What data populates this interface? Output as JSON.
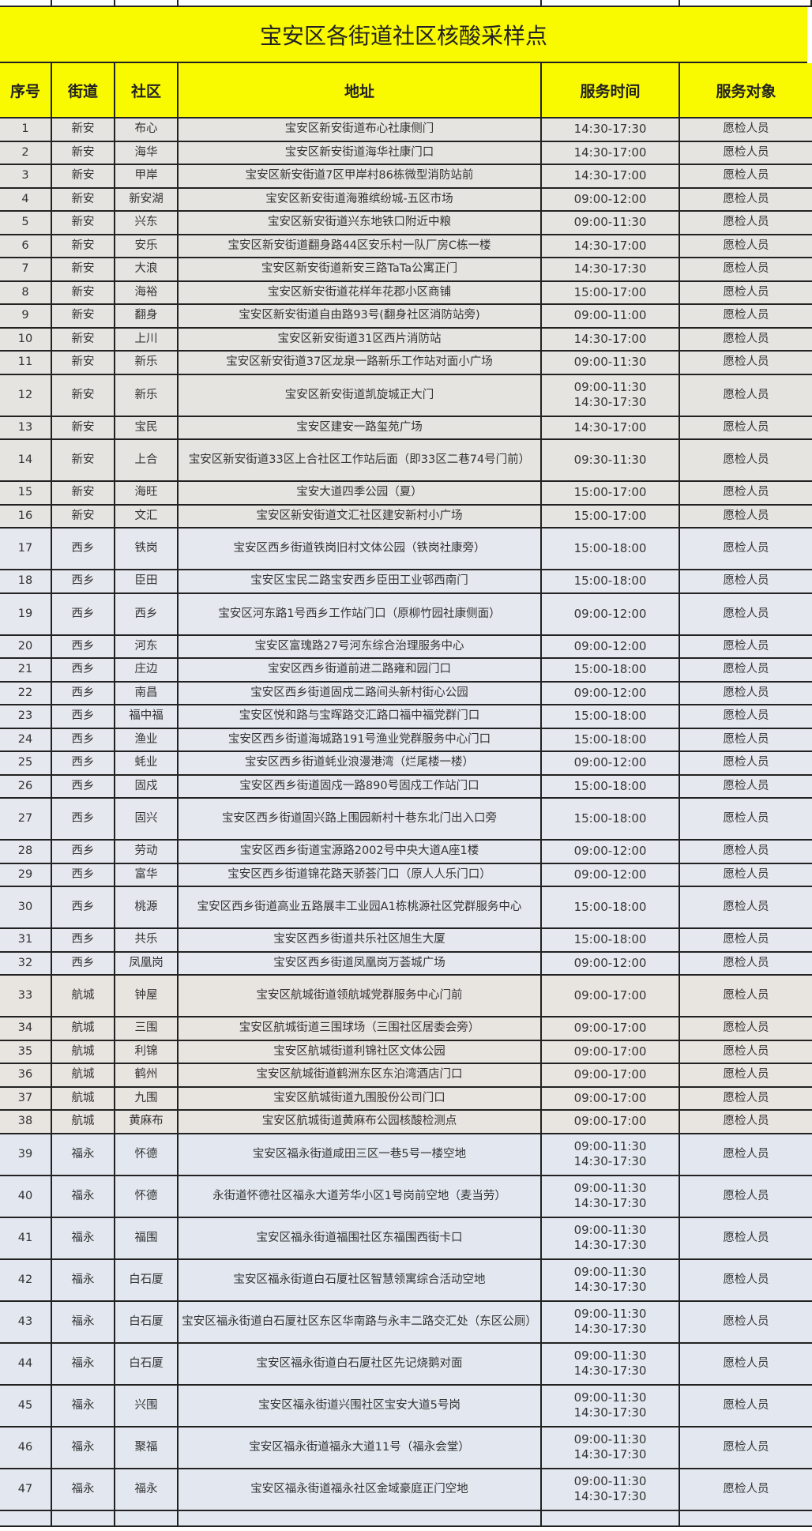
{
  "title": "宝安区各街道社区核酸采样点",
  "headers": [
    "序号",
    "街道",
    "社区",
    "地址",
    "服务时间",
    "服务对象"
  ],
  "colors": {
    "header_bg": "#f9f900",
    "border": "#222222",
    "xinan_bg": "#e6e4e0",
    "xixiang_bg": "#e5e8ef",
    "hangcheng_bg": "#e8e5e1",
    "fuyong_bg": "#e3e8f0"
  },
  "rows": [
    {
      "no": "1",
      "street": "新安",
      "community": "布心",
      "address": "宝安区新安街道布心社康侧门",
      "time": [
        "14:30-17:30"
      ],
      "target": "愿检人员"
    },
    {
      "no": "2",
      "street": "新安",
      "community": "海华",
      "address": "宝安区新安街道海华社康门口",
      "time": [
        "14:30-17:00"
      ],
      "target": "愿检人员"
    },
    {
      "no": "3",
      "street": "新安",
      "community": "甲岸",
      "address": "宝安区新安街道7区甲岸村86栋微型消防站前",
      "time": [
        "14:30-17:00"
      ],
      "target": "愿检人员"
    },
    {
      "no": "4",
      "street": "新安",
      "community": "新安湖",
      "address": "宝安区新安街道海雅缤纷城-五区市场",
      "time": [
        "09:00-12:00"
      ],
      "target": "愿检人员"
    },
    {
      "no": "5",
      "street": "新安",
      "community": "兴东",
      "address": "宝安区新安街道兴东地铁口附近中粮",
      "time": [
        "09:00-11:30"
      ],
      "target": "愿检人员"
    },
    {
      "no": "6",
      "street": "新安",
      "community": "安乐",
      "address": "宝安区新安街道翻身路44区安乐村一队厂房C栋一楼",
      "time": [
        "14:30-17:00"
      ],
      "target": "愿检人员"
    },
    {
      "no": "7",
      "street": "新安",
      "community": "大浪",
      "address": "宝安区新安街道新安三路TaTa公寓正门",
      "time": [
        "14:30-17:30"
      ],
      "target": "愿检人员"
    },
    {
      "no": "8",
      "street": "新安",
      "community": "海裕",
      "address": "宝安区新安街道花样年花郡小区商铺",
      "time": [
        "15:00-17:00"
      ],
      "target": "愿检人员"
    },
    {
      "no": "9",
      "street": "新安",
      "community": "翻身",
      "address": "宝安区新安街道自由路93号(翻身社区消防站旁)",
      "time": [
        "09:00-11:00"
      ],
      "target": "愿检人员"
    },
    {
      "no": "10",
      "street": "新安",
      "community": "上川",
      "address": "宝安区新安街道31区西片消防站",
      "time": [
        "14:30-17:00"
      ],
      "target": "愿检人员"
    },
    {
      "no": "11",
      "street": "新安",
      "community": "新乐",
      "address": "宝安区新安街道37区龙泉一路新乐工作站对面小广场",
      "time": [
        "09:00-11:30"
      ],
      "target": "愿检人员"
    },
    {
      "no": "12",
      "street": "新安",
      "community": "新乐",
      "address": "宝安区新安街道凯旋城正大门",
      "time": [
        "09:00-11:30",
        "14:30-17:30"
      ],
      "target": "愿检人员"
    },
    {
      "no": "13",
      "street": "新安",
      "community": "宝民",
      "address": "宝安区建安一路玺苑广场",
      "time": [
        "14:30-17:00"
      ],
      "target": "愿检人员"
    },
    {
      "no": "14",
      "street": "新安",
      "community": "上合",
      "address": "宝安区新安街道33区上合社区工作站后面（即33区二巷74号门前）",
      "time": [
        "09:30-11:30"
      ],
      "target": "愿检人员"
    },
    {
      "no": "15",
      "street": "新安",
      "community": "海旺",
      "address": "宝安大道四季公园（夏）",
      "time": [
        "15:00-17:00"
      ],
      "target": "愿检人员"
    },
    {
      "no": "16",
      "street": "新安",
      "community": "文汇",
      "address": "宝安区新安街道文汇社区建安新村小广场",
      "time": [
        "15:00-17:00"
      ],
      "target": "愿检人员"
    },
    {
      "no": "17",
      "street": "西乡",
      "community": "铁岗",
      "address": "宝安区西乡街道铁岗旧村文体公园（铁岗社康旁）",
      "time": [
        "15:00-18:00"
      ],
      "target": "愿检人员"
    },
    {
      "no": "18",
      "street": "西乡",
      "community": "臣田",
      "address": "宝安区宝民二路宝安西乡臣田工业邨西南门",
      "time": [
        "15:00-18:00"
      ],
      "target": "愿检人员"
    },
    {
      "no": "19",
      "street": "西乡",
      "community": "西乡",
      "address": "宝安区河东路1号西乡工作站门口（原柳竹园社康侧面）",
      "time": [
        "09:00-12:00"
      ],
      "target": "愿检人员"
    },
    {
      "no": "20",
      "street": "西乡",
      "community": "河东",
      "address": "宝安区富瑰路27号河东综合治理服务中心",
      "time": [
        "09:00-12:00"
      ],
      "target": "愿检人员"
    },
    {
      "no": "21",
      "street": "西乡",
      "community": "庄边",
      "address": "宝安区西乡街道前进二路雍和园门口",
      "time": [
        "15:00-18:00"
      ],
      "target": "愿检人员"
    },
    {
      "no": "22",
      "street": "西乡",
      "community": "南昌",
      "address": "宝安区西乡街道固戍二路间头新村街心公园",
      "time": [
        "09:00-12:00"
      ],
      "target": "愿检人员"
    },
    {
      "no": "23",
      "street": "西乡",
      "community": "福中福",
      "address": "宝安区悦和路与宝晖路交汇路口福中福党群门口",
      "time": [
        "15:00-18:00"
      ],
      "target": "愿检人员"
    },
    {
      "no": "24",
      "street": "西乡",
      "community": "渔业",
      "address": "宝安区西乡街道海城路191号渔业党群服务中心门口",
      "time": [
        "15:00-18:00"
      ],
      "target": "愿检人员"
    },
    {
      "no": "25",
      "street": "西乡",
      "community": "蚝业",
      "address": "宝安区西乡街道蚝业浪漫港湾（烂尾楼一楼）",
      "time": [
        "09:00-12:00"
      ],
      "target": "愿检人员"
    },
    {
      "no": "26",
      "street": "西乡",
      "community": "固戍",
      "address": "宝安区西乡街道固戍一路890号固戍工作站门口",
      "time": [
        "15:00-18:00"
      ],
      "target": "愿检人员"
    },
    {
      "no": "27",
      "street": "西乡",
      "community": "固兴",
      "address": "宝安区西乡街道固兴路上围园新村十巷东北门出入口旁",
      "time": [
        "15:00-18:00"
      ],
      "target": "愿检人员"
    },
    {
      "no": "28",
      "street": "西乡",
      "community": "劳动",
      "address": "宝安区西乡街道宝源路2002号中央大道A座1楼",
      "time": [
        "09:00-12:00"
      ],
      "target": "愿检人员"
    },
    {
      "no": "29",
      "street": "西乡",
      "community": "富华",
      "address": "宝安区西乡街道锦花路天骄荟门口（原人人乐门口）",
      "time": [
        "09:00-12:00"
      ],
      "target": "愿检人员"
    },
    {
      "no": "30",
      "street": "西乡",
      "community": "桃源",
      "address": "宝安区西乡街道高业五路展丰工业园A1栋桃源社区党群服务中心",
      "time": [
        "15:00-18:00"
      ],
      "target": "愿检人员"
    },
    {
      "no": "31",
      "street": "西乡",
      "community": "共乐",
      "address": "宝安区西乡街道共乐社区旭生大厦",
      "time": [
        "15:00-18:00"
      ],
      "target": "愿检人员"
    },
    {
      "no": "32",
      "street": "西乡",
      "community": "凤凰岗",
      "address": "宝安区西乡街道凤凰岗万荟城广场",
      "time": [
        "09:00-12:00"
      ],
      "target": "愿检人员"
    },
    {
      "no": "33",
      "street": "航城",
      "community": "钟屋",
      "address": "宝安区航城街道领航城党群服务中心门前",
      "time": [
        "09:00-17:00"
      ],
      "target": "愿检人员"
    },
    {
      "no": "34",
      "street": "航城",
      "community": "三围",
      "address": "宝安区航城街道三围球场（三围社区居委会旁）",
      "time": [
        "09:00-17:00"
      ],
      "target": "愿检人员"
    },
    {
      "no": "35",
      "street": "航城",
      "community": "利锦",
      "address": "宝安区航城街道利锦社区文体公园",
      "time": [
        "09:00-17:00"
      ],
      "target": "愿检人员"
    },
    {
      "no": "36",
      "street": "航城",
      "community": "鹤州",
      "address": "宝安区航城街道鹤洲东区东泊湾酒店门口",
      "time": [
        "09:00-17:00"
      ],
      "target": "愿检人员"
    },
    {
      "no": "37",
      "street": "航城",
      "community": "九围",
      "address": "宝安区航城街道九围股份公司门口",
      "time": [
        "09:00-17:00"
      ],
      "target": "愿检人员"
    },
    {
      "no": "38",
      "street": "航城",
      "community": "黄麻布",
      "address": "宝安区航城街道黄麻布公园核酸检测点",
      "time": [
        "09:00-17:00"
      ],
      "target": "愿检人员"
    },
    {
      "no": "39",
      "street": "福永",
      "community": "怀德",
      "address": "宝安区福永街道咸田三区一巷5号一楼空地",
      "time": [
        "09:00-11:30",
        "14:30-17:30"
      ],
      "target": "愿检人员"
    },
    {
      "no": "40",
      "street": "福永",
      "community": "怀德",
      "address": "永街道怀德社区福永大道芳华小区1号岗前空地（麦当劳）",
      "time": [
        "09:00-11:30",
        "14:30-17:30"
      ],
      "target": "愿检人员"
    },
    {
      "no": "41",
      "street": "福永",
      "community": "福围",
      "address": "宝安区福永街道福围社区东福围西街卡口",
      "time": [
        "09:00-11:30",
        "14:30-17:30"
      ],
      "target": "愿检人员"
    },
    {
      "no": "42",
      "street": "福永",
      "community": "白石厦",
      "address": "宝安区福永街道白石厦社区智慧领寓综合活动空地",
      "time": [
        "09:00-11:30",
        "14:30-17:30"
      ],
      "target": "愿检人员"
    },
    {
      "no": "43",
      "street": "福永",
      "community": "白石厦",
      "address": "宝安区福永街道白石厦社区东区华南路与永丰二路交汇处（东区公厕）",
      "time": [
        "09:00-11:30",
        "14:30-17:30"
      ],
      "target": "愿检人员"
    },
    {
      "no": "44",
      "street": "福永",
      "community": "白石厦",
      "address": "宝安区福永街道白石厦社区先记烧鹅对面",
      "time": [
        "09:00-11:30",
        "14:30-17:30"
      ],
      "target": "愿检人员"
    },
    {
      "no": "45",
      "street": "福永",
      "community": "兴围",
      "address": "宝安区福永街道兴围社区宝安大道5号岗",
      "time": [
        "09:00-11:30",
        "14:30-17:30"
      ],
      "target": "愿检人员"
    },
    {
      "no": "46",
      "street": "福永",
      "community": "聚福",
      "address": "宝安区福永街道福永大道11号（福永会堂）",
      "time": [
        "09:00-11:30",
        "14:30-17:30"
      ],
      "target": "愿检人员"
    },
    {
      "no": "47",
      "street": "福永",
      "community": "福永",
      "address": "宝安区福永街道福永社区金域豪庭正门空地",
      "time": [
        "09:00-11:30",
        "14:30-17:30"
      ],
      "target": "愿检人员"
    }
  ]
}
